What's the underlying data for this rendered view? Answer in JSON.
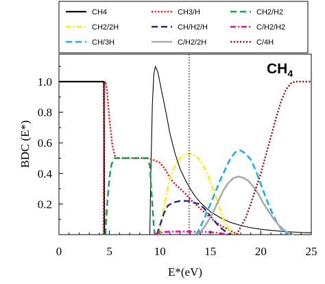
{
  "chart_data": {
    "type": "line",
    "xlabel": "E*(eV)",
    "ylabel": "BDC (E*)",
    "xlim": [
      0,
      25
    ],
    "ylim": [
      0,
      1.2
    ],
    "x_ticks": [
      0,
      5,
      10,
      15,
      20,
      25
    ],
    "y_ticks": [
      0.2,
      0.4,
      0.6,
      0.8,
      1.0
    ],
    "y_tick_labels": [
      "0.2",
      "0.4",
      "0.6",
      "0.8",
      "1.0"
    ],
    "grid": false,
    "legend_position": "top",
    "annotation": {
      "text": "CH",
      "subscript": "4"
    },
    "vline": {
      "x": 12.9,
      "style": "dotted",
      "color": "#000000"
    },
    "series": [
      {
        "name": "CH4",
        "color": "#000000",
        "style": "solid",
        "width": 2.2,
        "points": [
          [
            0,
            1.0
          ],
          [
            4.45,
            1.0
          ],
          [
            4.5,
            0.0
          ]
        ]
      },
      {
        "name": "CH4",
        "color": "#000000",
        "style": "solid",
        "width": 1.1,
        "legend": false,
        "points": [
          [
            9.0,
            0.0
          ],
          [
            9.1,
            0.4
          ],
          [
            9.25,
            0.85
          ],
          [
            9.4,
            1.05
          ],
          [
            9.55,
            1.1
          ],
          [
            9.8,
            1.06
          ],
          [
            10.2,
            0.93
          ],
          [
            10.6,
            0.8
          ],
          [
            11.0,
            0.66
          ],
          [
            11.5,
            0.53
          ],
          [
            12.0,
            0.43
          ],
          [
            12.5,
            0.36
          ],
          [
            13.0,
            0.3
          ],
          [
            13.5,
            0.25
          ],
          [
            14.0,
            0.21
          ],
          [
            14.5,
            0.18
          ],
          [
            15.0,
            0.15
          ],
          [
            16.0,
            0.11
          ],
          [
            17.0,
            0.08
          ],
          [
            18.0,
            0.06
          ],
          [
            19.0,
            0.045
          ],
          [
            20.0,
            0.035
          ],
          [
            21.0,
            0.028
          ],
          [
            22.0,
            0.022
          ],
          [
            23.0,
            0.018
          ],
          [
            24.0,
            0.014
          ],
          [
            25.0,
            0.012
          ]
        ]
      },
      {
        "name": "CH3/H",
        "color": "#e8141e",
        "style": "dotted",
        "width": 2.4,
        "points": [
          [
            4.4,
            0.0
          ],
          [
            4.5,
            0.97
          ],
          [
            4.6,
            1.0
          ],
          [
            4.75,
            0.95
          ],
          [
            5.0,
            0.75
          ],
          [
            5.3,
            0.58
          ],
          [
            5.6,
            0.5
          ],
          [
            6.0,
            0.5
          ],
          [
            8.8,
            0.5
          ],
          [
            9.3,
            0.49
          ],
          [
            10.0,
            0.47
          ],
          [
            10.5,
            0.43
          ],
          [
            11.0,
            0.37
          ],
          [
            11.5,
            0.33
          ],
          [
            12.0,
            0.3
          ],
          [
            12.5,
            0.27
          ],
          [
            13.0,
            0.23
          ],
          [
            14.0,
            0.17
          ],
          [
            15.0,
            0.11
          ],
          [
            16.0,
            0.06
          ],
          [
            17.0,
            0.025
          ],
          [
            17.8,
            0.0
          ]
        ]
      },
      {
        "name": "CH2/H2",
        "color": "#12a04a",
        "style": "dashed",
        "width": 2.4,
        "points": [
          [
            4.6,
            0.0
          ],
          [
            4.75,
            0.18
          ],
          [
            5.0,
            0.37
          ],
          [
            5.2,
            0.46
          ],
          [
            5.5,
            0.5
          ],
          [
            8.8,
            0.5
          ],
          [
            9.0,
            0.45
          ],
          [
            9.2,
            0.25
          ],
          [
            9.4,
            0.05
          ],
          [
            9.5,
            0.0
          ]
        ]
      },
      {
        "name": "CH2/2H",
        "color": "#ffee00",
        "style": "dashdot",
        "width": 2.4,
        "points": [
          [
            9.9,
            0.0
          ],
          [
            10.2,
            0.1
          ],
          [
            10.6,
            0.25
          ],
          [
            11.0,
            0.37
          ],
          [
            11.5,
            0.45
          ],
          [
            12.0,
            0.5
          ],
          [
            12.5,
            0.525
          ],
          [
            12.9,
            0.53
          ],
          [
            13.3,
            0.525
          ],
          [
            13.8,
            0.5
          ],
          [
            14.3,
            0.45
          ],
          [
            14.8,
            0.38
          ],
          [
            15.3,
            0.29
          ],
          [
            15.8,
            0.2
          ],
          [
            16.3,
            0.1
          ],
          [
            16.8,
            0.04
          ],
          [
            17.2,
            0.0
          ]
        ]
      },
      {
        "name": "CH/H2/H",
        "color": "#1c2a8c",
        "style": "dashed",
        "width": 2.4,
        "points": [
          [
            9.7,
            0.0
          ],
          [
            10.0,
            0.06
          ],
          [
            10.4,
            0.14
          ],
          [
            10.8,
            0.19
          ],
          [
            11.3,
            0.21
          ],
          [
            12.0,
            0.22
          ],
          [
            12.7,
            0.22
          ],
          [
            13.3,
            0.21
          ],
          [
            13.9,
            0.2
          ],
          [
            14.4,
            0.17
          ],
          [
            14.9,
            0.13
          ],
          [
            15.4,
            0.09
          ],
          [
            15.9,
            0.05
          ],
          [
            16.5,
            0.02
          ],
          [
            17.0,
            0.0
          ]
        ]
      },
      {
        "name": "C/H2/H2",
        "color": "#ff009a",
        "style": "dashdot",
        "width": 2.4,
        "points": [
          [
            9.4,
            0.0
          ],
          [
            9.8,
            0.01
          ],
          [
            10.5,
            0.018
          ],
          [
            11.5,
            0.02
          ],
          [
            13.0,
            0.02
          ],
          [
            14.5,
            0.018
          ],
          [
            15.5,
            0.014
          ],
          [
            16.3,
            0.006
          ],
          [
            16.8,
            0.0
          ]
        ]
      },
      {
        "name": "CH/3H",
        "color": "#1ab0ea",
        "style": "dashed",
        "width": 2.6,
        "points": [
          [
            13.6,
            0.0
          ],
          [
            14.0,
            0.05
          ],
          [
            14.5,
            0.12
          ],
          [
            15.0,
            0.2
          ],
          [
            15.5,
            0.28
          ],
          [
            16.0,
            0.36
          ],
          [
            16.5,
            0.43
          ],
          [
            17.0,
            0.5
          ],
          [
            17.5,
            0.54
          ],
          [
            18.0,
            0.55
          ],
          [
            18.5,
            0.53
          ],
          [
            19.0,
            0.49
          ],
          [
            19.5,
            0.42
          ],
          [
            20.0,
            0.33
          ],
          [
            20.5,
            0.24
          ],
          [
            21.0,
            0.16
          ],
          [
            21.5,
            0.09
          ],
          [
            22.0,
            0.04
          ],
          [
            22.5,
            0.01
          ],
          [
            23.0,
            0.0
          ]
        ]
      },
      {
        "name": "C/H2/2H",
        "color": "#aaaaaa",
        "style": "solid",
        "width": 2.6,
        "points": [
          [
            13.8,
            0.0
          ],
          [
            14.3,
            0.04
          ],
          [
            14.8,
            0.09
          ],
          [
            15.3,
            0.15
          ],
          [
            15.8,
            0.22
          ],
          [
            16.3,
            0.29
          ],
          [
            16.8,
            0.34
          ],
          [
            17.3,
            0.37
          ],
          [
            17.8,
            0.38
          ],
          [
            18.3,
            0.37
          ],
          [
            18.8,
            0.35
          ],
          [
            19.3,
            0.31
          ],
          [
            19.8,
            0.26
          ],
          [
            20.3,
            0.2
          ],
          [
            20.8,
            0.15
          ],
          [
            21.3,
            0.1
          ],
          [
            21.8,
            0.06
          ],
          [
            22.3,
            0.03
          ],
          [
            22.8,
            0.01
          ],
          [
            23.3,
            0.0
          ]
        ]
      },
      {
        "name": "C/4H",
        "color": "#8b1a1a",
        "style": "dotted",
        "width": 2.4,
        "points": [
          [
            17.6,
            0.0
          ],
          [
            18.0,
            0.05
          ],
          [
            18.5,
            0.11
          ],
          [
            19.0,
            0.2
          ],
          [
            19.5,
            0.3
          ],
          [
            20.0,
            0.4
          ],
          [
            20.5,
            0.52
          ],
          [
            21.0,
            0.64
          ],
          [
            21.5,
            0.76
          ],
          [
            22.0,
            0.87
          ],
          [
            22.5,
            0.95
          ],
          [
            23.0,
            0.99
          ],
          [
            23.4,
            1.0
          ],
          [
            25.0,
            1.0
          ]
        ]
      }
    ],
    "legend": [
      {
        "name": "CH4",
        "series": 0
      },
      {
        "name": "CH3/H",
        "series": 2
      },
      {
        "name": "CH2/H2",
        "series": 3
      },
      {
        "name": "CH2/2H",
        "series": 4
      },
      {
        "name": "CH/H2/H",
        "series": 5
      },
      {
        "name": "C/H2/H2",
        "series": 6
      },
      {
        "name": "CH/3H",
        "series": 7
      },
      {
        "name": "C/H2/2H",
        "series": 8
      },
      {
        "name": "C/4H",
        "series": 9
      }
    ]
  }
}
